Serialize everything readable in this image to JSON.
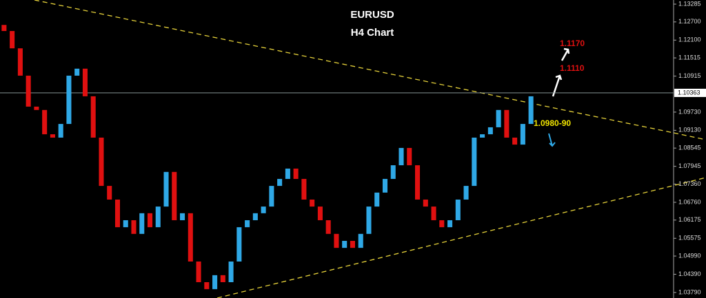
{
  "chart_data": {
    "type": "candlestick",
    "title": "EURUSD",
    "subtitle": "H4 Chart",
    "open": [
      1.126,
      1.124,
      1.1183,
      1.1093,
      1.0991,
      1.098,
      1.09,
      1.0889,
      1.0934,
      1.1093,
      1.1116,
      1.1025,
      1.0889,
      1.073,
      1.0685,
      1.0594,
      1.0617,
      1.0572,
      1.064,
      1.0594,
      1.0662,
      1.0776,
      1.0617,
      1.064,
      1.0481,
      1.0413,
      1.039,
      1.0436,
      1.0413,
      1.0481,
      1.0594,
      1.0617,
      1.064,
      1.0662,
      1.073,
      1.0753,
      1.0787,
      1.0753,
      1.0685,
      1.0662,
      1.0617,
      1.0572,
      1.0526,
      1.0549,
      1.0526,
      1.0572,
      1.0662,
      1.0708,
      1.0753,
      1.0798,
      1.0855,
      1.0798,
      1.0685,
      1.0662,
      1.0617,
      1.0594,
      1.0617,
      1.0685,
      1.073,
      1.0889,
      1.09,
      1.0923,
      1.098,
      1.0889,
      1.0866,
      1.0934
    ],
    "close": [
      1.124,
      1.1183,
      1.1093,
      1.0991,
      1.098,
      1.09,
      1.0889,
      1.0934,
      1.1093,
      1.1116,
      1.1025,
      1.0889,
      1.073,
      1.0685,
      1.0594,
      1.0617,
      1.0572,
      1.064,
      1.0594,
      1.0662,
      1.0776,
      1.0617,
      1.064,
      1.0481,
      1.0413,
      1.039,
      1.0436,
      1.0413,
      1.0481,
      1.0594,
      1.0617,
      1.064,
      1.0662,
      1.073,
      1.0753,
      1.0787,
      1.0753,
      1.0685,
      1.0662,
      1.0617,
      1.0572,
      1.0526,
      1.0549,
      1.0526,
      1.0572,
      1.0662,
      1.0708,
      1.0753,
      1.0798,
      1.0855,
      1.0798,
      1.0685,
      1.0662,
      1.0617,
      1.0594,
      1.0617,
      1.0685,
      1.073,
      1.0889,
      1.09,
      1.0923,
      1.098,
      1.0889,
      1.0866,
      1.0934,
      1.1025
    ],
    "up_color": "#2fa8e6",
    "down_color": "#e01010",
    "ylim": [
      1.03609,
      1.13421
    ],
    "yticks": [
      {
        "value": 1.13285,
        "label": "1.13285"
      },
      {
        "value": 1.127,
        "label": "1.12700"
      },
      {
        "value": 1.121,
        "label": "1.12100"
      },
      {
        "value": 1.11515,
        "label": "1.11515"
      },
      {
        "value": 1.10915,
        "label": "1.10915"
      },
      {
        "value": 1.0973,
        "label": "1.09730"
      },
      {
        "value": 1.0913,
        "label": "1.09130"
      },
      {
        "value": 1.08545,
        "label": "1.08545"
      },
      {
        "value": 1.07945,
        "label": "1.07945"
      },
      {
        "value": 1.0736,
        "label": "1.07360"
      },
      {
        "value": 1.0676,
        "label": "1.06760"
      },
      {
        "value": 1.06175,
        "label": "1.06175"
      },
      {
        "value": 1.05575,
        "label": "1.05575"
      },
      {
        "value": 1.0499,
        "label": "1.04990"
      },
      {
        "value": 1.0439,
        "label": "1.04390"
      },
      {
        "value": 1.0379,
        "label": "1.03790"
      }
    ],
    "last_price": {
      "value": 1.10363,
      "label": "1.10363"
    },
    "annotations": [
      "1.1170",
      "1.1110",
      "1.0980-90"
    ]
  }
}
